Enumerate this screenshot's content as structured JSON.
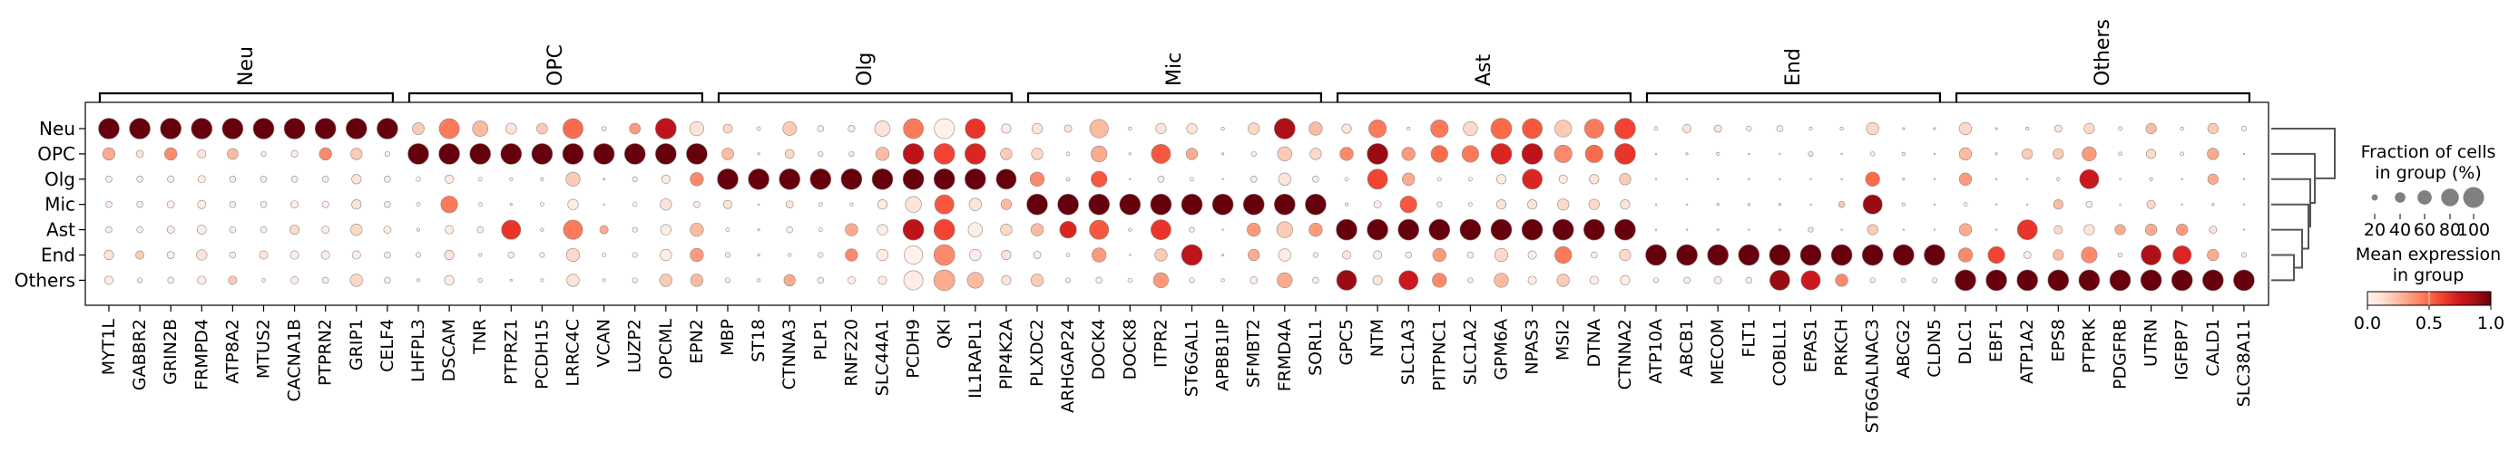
{
  "chart_data": {
    "type": "heatmap",
    "rows": [
      "Neu",
      "OPC",
      "Olg",
      "Mic",
      "Ast",
      "End",
      "Others"
    ],
    "groups": [
      {
        "label": "Neu",
        "genes": [
          "MYT1L",
          "GABBR2",
          "GRIN2B",
          "FRMPD4",
          "ATP8A2",
          "MTUS2",
          "CACNA1B",
          "PTPRN2",
          "GRIP1",
          "CELF4"
        ]
      },
      {
        "label": "OPC",
        "genes": [
          "LHFPL3",
          "DSCAM",
          "TNR",
          "PTPRZ1",
          "PCDH15",
          "LRRC4C",
          "VCAN",
          "LUZP2",
          "OPCML",
          "EPN2"
        ]
      },
      {
        "label": "Olg",
        "genes": [
          "MBP",
          "ST18",
          "CTNNA3",
          "PLP1",
          "RNF220",
          "SLC44A1",
          "PCDH9",
          "QKI",
          "IL1RAPL1",
          "PIP4K2A"
        ]
      },
      {
        "label": "Mic",
        "genes": [
          "PLXDC2",
          "ARHGAP24",
          "DOCK4",
          "DOCK8",
          "ITPR2",
          "ST6GAL1",
          "APBB1IP",
          "SFMBT2",
          "FRMD4A",
          "SORL1"
        ]
      },
      {
        "label": "Ast",
        "genes": [
          "GPC5",
          "NTM",
          "SLC1A3",
          "PITPNC1",
          "SLC1A2",
          "GPM6A",
          "NPAS3",
          "MSI2",
          "DTNA",
          "CTNNA2"
        ]
      },
      {
        "label": "End",
        "genes": [
          "ATP10A",
          "ABCB1",
          "MECOM",
          "FLT1",
          "COBLL1",
          "EPAS1",
          "PRKCH",
          "ST6GALNAC3",
          "ABCG2",
          "CLDN5"
        ]
      },
      {
        "label": "Others",
        "genes": [
          "DLC1",
          "EBF1",
          "ATP1A2",
          "EPS8",
          "PTPRK",
          "PDGFRB",
          "UTRN",
          "IGFBP7",
          "CALD1",
          "SLC38A11"
        ]
      }
    ],
    "fraction": [
      [
        1,
        1,
        1,
        1,
        1,
        1,
        1,
        1,
        1,
        1,
        0.47,
        0.95,
        0.67,
        0.42,
        0.42,
        0.95,
        0.13,
        0.42,
        1,
        0.6,
        0.33,
        0.1,
        0.57,
        0.2,
        0.22,
        0.67,
        0.95,
        0.95,
        0.95,
        0.35,
        0.4,
        0.25,
        0.85,
        0.08,
        0.4,
        0.4,
        0.08,
        0.45,
        1,
        0.55,
        0.35,
        0.8,
        0.08,
        0.8,
        0.6,
        1,
        0.95,
        0.75,
        0.9,
        1,
        0.1,
        0.3,
        0.25,
        0.15,
        0.2,
        0.08,
        0.08,
        0.5,
        0.05,
        0.05,
        0.5,
        0.05,
        0.08,
        0.25,
        0.4,
        0.1,
        0.4,
        0.08,
        0.4,
        0.15
      ],
      [
        0.5,
        0.25,
        0.5,
        0.3,
        0.42,
        0.15,
        0.22,
        0.5,
        0.45,
        0.15,
        1,
        1,
        1,
        1,
        1,
        1,
        1,
        1,
        1,
        1,
        0.47,
        0.05,
        0.33,
        0.15,
        0.15,
        0.55,
        1,
        1,
        1,
        0.45,
        0.45,
        0.1,
        0.7,
        0.05,
        0.9,
        0.45,
        0.05,
        0.15,
        0.6,
        0.45,
        0.55,
        1,
        0.55,
        0.75,
        0.75,
        1,
        1,
        0.8,
        0.8,
        1,
        0.03,
        0.05,
        0.08,
        0.03,
        0.03,
        0.15,
        0.03,
        0.12,
        0.08,
        0.03,
        0.5,
        0.05,
        0.4,
        0.4,
        0.6,
        0.1,
        0.35,
        0.1,
        0.45,
        0.03
      ],
      [
        0.2,
        0.2,
        0.22,
        0.25,
        0.2,
        0.2,
        0.2,
        0.2,
        0.35,
        0.2,
        0.12,
        0.3,
        0.1,
        0.08,
        0.08,
        0.6,
        0.05,
        0.15,
        0.3,
        0.55,
        1,
        1,
        1,
        1,
        1,
        1,
        1,
        1,
        1,
        0.95,
        0.6,
        0.1,
        0.7,
        0.03,
        0.2,
        0.1,
        0.03,
        0.2,
        0.5,
        0.2,
        0.1,
        0.95,
        0.5,
        0.1,
        0.1,
        0.35,
        0.95,
        0.3,
        0.35,
        0.45,
        0.03,
        0.03,
        0.03,
        0.03,
        0.03,
        0.03,
        0.03,
        0.6,
        0.05,
        0.03,
        0.5,
        0.03,
        0.03,
        0.08,
        0.9,
        0.03,
        0.08,
        0.03,
        0.4,
        0.03
      ],
      [
        0.2,
        0.2,
        0.25,
        0.3,
        0.2,
        0.2,
        0.25,
        0.22,
        0.35,
        0.2,
        0.1,
        0.75,
        0.1,
        0.05,
        0.1,
        0.4,
        0.03,
        0.12,
        0.45,
        0.2,
        0.3,
        0.03,
        0.25,
        0.1,
        0.08,
        0.35,
        0.7,
        0.9,
        0.5,
        0.4,
        1,
        1,
        1,
        1,
        1,
        1,
        1,
        1,
        1,
        1,
        0.08,
        0.25,
        0.75,
        0.15,
        0.1,
        0.35,
        0.35,
        0.45,
        0.4,
        0.35,
        0.03,
        0.03,
        0.05,
        0.05,
        0.05,
        0.03,
        0.2,
        0.9,
        0.08,
        0.03,
        0.1,
        0.03,
        0.03,
        0.35,
        0.2,
        0.03,
        0.3,
        0.03,
        0.05,
        0.03
      ],
      [
        0.2,
        0.2,
        0.25,
        0.33,
        0.2,
        0.2,
        0.35,
        0.25,
        0.45,
        0.25,
        0.08,
        0.3,
        0.2,
        0.9,
        0.08,
        0.9,
        0.3,
        0.15,
        0.4,
        0.55,
        0.1,
        0.05,
        0.2,
        0.1,
        0.5,
        0.4,
        1,
        1,
        0.6,
        0.45,
        0.5,
        0.75,
        0.9,
        0.08,
        0.95,
        0.15,
        0.03,
        0.55,
        0.7,
        0.55,
        1,
        1,
        1,
        1,
        1,
        1,
        1,
        1,
        1,
        1,
        0.03,
        0.03,
        0.05,
        0.03,
        0.05,
        0.15,
        0.03,
        0.4,
        0.03,
        0.03,
        0.5,
        0.03,
        0.95,
        0.3,
        0.4,
        0.4,
        0.45,
        0.45,
        0.25,
        0.03
      ],
      [
        0.35,
        0.3,
        0.25,
        0.4,
        0.2,
        0.3,
        0.3,
        0.3,
        0.3,
        0.2,
        0.15,
        0.35,
        0.08,
        0.2,
        0.15,
        0.55,
        0.1,
        0.15,
        0.45,
        0.55,
        0.15,
        0.05,
        0.08,
        0.15,
        0.5,
        0.45,
        0.85,
        1,
        0.45,
        0.35,
        0.25,
        0.1,
        0.6,
        0.03,
        0.5,
        1,
        0.05,
        0.45,
        0.5,
        0.15,
        0.3,
        0.3,
        0.2,
        0.55,
        0.2,
        0.55,
        0.3,
        0.75,
        0.2,
        0.45,
        1,
        1,
        1,
        1,
        1,
        1,
        1,
        1,
        1,
        1,
        0.6,
        0.75,
        0.25,
        0.4,
        0.7,
        0.12,
        0.95,
        0.85,
        0.45,
        0.15
      ],
      [
        0.3,
        0.15,
        0.2,
        0.3,
        0.3,
        0.1,
        0.25,
        0.2,
        0.5,
        0.2,
        0.08,
        0.35,
        0.12,
        0.05,
        0.08,
        0.5,
        0.08,
        0.15,
        0.5,
        0.5,
        0.15,
        0.08,
        0.45,
        0.2,
        0.25,
        0.3,
        0.9,
        1,
        0.7,
        0.35,
        0.5,
        0.15,
        0.2,
        0.12,
        0.65,
        0.15,
        0.08,
        0.25,
        0.65,
        0.2,
        0.95,
        0.35,
        0.9,
        0.6,
        0.15,
        0.6,
        0.3,
        0.5,
        0.3,
        0.35,
        0.15,
        0.2,
        0.25,
        0.2,
        0.95,
        0.9,
        0.5,
        0.15,
        0.12,
        0.15,
        1,
        1,
        1,
        1,
        1,
        1,
        1,
        1,
        1,
        1
      ]
    ],
    "mean_expression": [
      [
        1,
        1,
        1,
        1,
        1,
        1,
        1,
        1,
        1,
        1,
        0.2,
        0.45,
        0.25,
        0.1,
        0.2,
        0.5,
        0.05,
        0.35,
        0.8,
        0.1,
        0.15,
        0.05,
        0.2,
        0.05,
        0.05,
        0.1,
        0.45,
        0.02,
        0.65,
        0.05,
        0.1,
        0.1,
        0.25,
        0,
        0.1,
        0.1,
        0,
        0.15,
        0.85,
        0.25,
        0.1,
        0.45,
        0,
        0.45,
        0.15,
        0.5,
        0.55,
        0.2,
        0.45,
        0.6,
        0.05,
        0.1,
        0.1,
        0.05,
        0.05,
        0,
        0,
        0.15,
        0,
        0,
        0.15,
        0,
        0.05,
        0.1,
        0.15,
        0.05,
        0.25,
        0,
        0.2,
        0.05
      ],
      [
        0.3,
        0.1,
        0.4,
        0.1,
        0.25,
        0.05,
        0.05,
        0.4,
        0.2,
        0.05,
        1,
        1,
        1,
        1,
        1,
        1,
        1,
        1,
        1,
        1,
        0.25,
        0,
        0.15,
        0.05,
        0.05,
        0.25,
        0.8,
        0.6,
        0.7,
        0.2,
        0.15,
        0.05,
        0.3,
        0,
        0.55,
        0.3,
        0,
        0.05,
        0.2,
        0.15,
        0.4,
        0.9,
        0.35,
        0.5,
        0.45,
        0.7,
        0.8,
        0.4,
        0.5,
        0.65,
        0,
        0.05,
        0.05,
        0,
        0,
        0.1,
        0,
        0.05,
        0.05,
        0,
        0.25,
        0,
        0.2,
        0.2,
        0.35,
        0.05,
        0.15,
        0.05,
        0.3,
        0
      ],
      [
        0.05,
        0.05,
        0.05,
        0.05,
        0.05,
        0.05,
        0.05,
        0.05,
        0.1,
        0.05,
        0,
        0.05,
        0,
        0,
        0,
        0.2,
        0,
        0.05,
        0.05,
        0.4,
        1,
        1,
        1,
        1,
        1,
        1,
        1,
        1,
        1,
        1,
        0.4,
        0.05,
        0.55,
        0,
        0.05,
        0,
        0,
        0.05,
        0.1,
        0.05,
        0,
        0.6,
        0.3,
        0,
        0,
        0.05,
        0.7,
        0.05,
        0.1,
        0.2,
        0,
        0,
        0,
        0,
        0,
        0,
        0,
        0.5,
        0,
        0,
        0.35,
        0,
        0,
        0,
        0.75,
        0,
        0.05,
        0,
        0.3,
        0
      ],
      [
        0.05,
        0.05,
        0.05,
        0.05,
        0.05,
        0.05,
        0.05,
        0.05,
        0.1,
        0.05,
        0,
        0.45,
        0,
        0,
        0,
        0.05,
        0,
        0,
        0.1,
        0.05,
        0.1,
        0,
        0.1,
        0,
        0,
        0.05,
        0.1,
        0.55,
        0.1,
        0.25,
        1,
        1,
        1,
        1,
        1,
        1,
        1,
        1,
        1,
        1,
        0,
        0.05,
        0.55,
        0.05,
        0,
        0.1,
        0.1,
        0.15,
        0.15,
        0.1,
        0,
        0,
        0,
        0,
        0,
        0,
        0.2,
        0.9,
        0,
        0,
        0,
        0,
        0,
        0.25,
        0.05,
        0,
        0.15,
        0,
        0,
        0
      ],
      [
        0.05,
        0.05,
        0.05,
        0.05,
        0.05,
        0.05,
        0.15,
        0.05,
        0.15,
        0.05,
        0,
        0.05,
        0.05,
        0.65,
        0,
        0.45,
        0.3,
        0.05,
        0.05,
        0.25,
        0,
        0,
        0.05,
        0,
        0.3,
        0.05,
        0.8,
        0.6,
        0.05,
        0.15,
        0.25,
        0.7,
        0.55,
        0,
        0.65,
        0.05,
        0,
        0.35,
        0.2,
        0.35,
        1,
        1,
        1,
        1,
        1,
        1,
        1,
        1,
        1,
        1,
        0,
        0,
        0,
        0,
        0,
        0.1,
        0,
        0.2,
        0,
        0,
        0.3,
        0,
        0.65,
        0.15,
        0.1,
        0.3,
        0.3,
        0.35,
        0.1,
        0
      ],
      [
        0.1,
        0.2,
        0.05,
        0.1,
        0.05,
        0.1,
        0.05,
        0.05,
        0.05,
        0.05,
        0.05,
        0.1,
        0,
        0.05,
        0.05,
        0.15,
        0,
        0.05,
        0.05,
        0.35,
        0.05,
        0,
        0,
        0.05,
        0.4,
        0.05,
        0.02,
        0.4,
        0.05,
        0.1,
        0.05,
        0.05,
        0.35,
        0,
        0.2,
        0.8,
        0,
        0.3,
        0.05,
        0.05,
        0.1,
        0.05,
        0.05,
        0.35,
        0.05,
        0.15,
        0.05,
        0.45,
        0.05,
        0.15,
        1,
        1,
        1,
        1,
        1,
        1,
        1,
        1,
        1,
        1,
        0.4,
        0.6,
        0.05,
        0.25,
        0.4,
        0.05,
        0.85,
        0.7,
        0.3,
        0.05
      ],
      [
        0.05,
        0.05,
        0.05,
        0.05,
        0.2,
        0.05,
        0.05,
        0.05,
        0.15,
        0.05,
        0,
        0.05,
        0.05,
        0,
        0,
        0.1,
        0,
        0.05,
        0.2,
        0.25,
        0.05,
        0,
        0.3,
        0.05,
        0.05,
        0.05,
        0.05,
        0.3,
        0.25,
        0.1,
        0.2,
        0.05,
        0.05,
        0,
        0.35,
        0.05,
        0,
        0.05,
        0.3,
        0.05,
        0.9,
        0.1,
        0.75,
        0.4,
        0.05,
        0.25,
        0.05,
        0.2,
        0.05,
        0.05,
        0.05,
        0.05,
        0.05,
        0.05,
        0.9,
        0.75,
        0.4,
        0.05,
        0.05,
        0.05,
        1,
        1,
        1,
        1,
        1,
        1,
        1,
        1,
        1,
        1
      ]
    ],
    "colormap": "Reds",
    "size_legend": {
      "title_lines": [
        "Fraction of cells",
        "in group (%)"
      ],
      "ticks": [
        "20",
        "40",
        "60",
        "80",
        "100"
      ],
      "values": [
        20,
        40,
        60,
        80,
        100
      ]
    },
    "color_legend": {
      "title_lines": [
        "Mean expression",
        "in group"
      ],
      "ticks": [
        "0.0",
        "0.5",
        "1.0"
      ],
      "range": [
        0,
        1
      ]
    },
    "dendrogram": true,
    "dot_color": "#808080"
  }
}
